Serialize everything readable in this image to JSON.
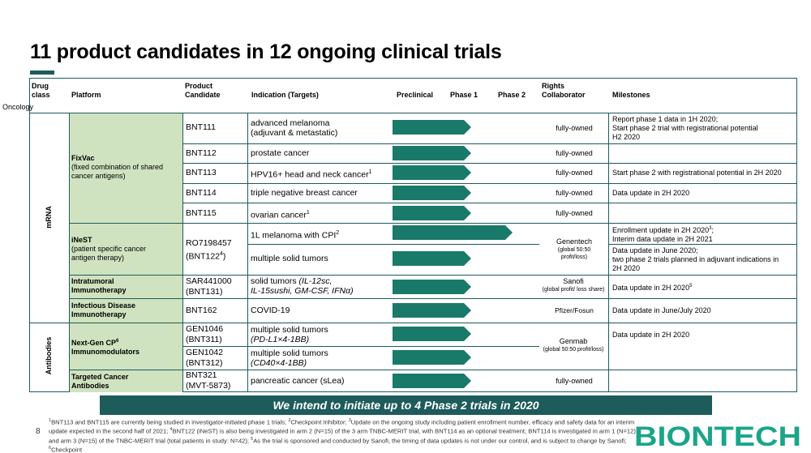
{
  "title": "11 product candidates in 12 ongoing clinical trials",
  "headers": {
    "drug_class": "Drug class",
    "platform": "Platform",
    "product_candidate": "Product Candidate",
    "indication": "Indication (Targets)",
    "preclinical": "Preclinical",
    "phase1": "Phase 1",
    "phase2": "Phase 2",
    "rights": "Rights Collaborator",
    "milestones": "Milestones"
  },
  "oncology_label": "Oncology",
  "drug_classes": {
    "mrna": "mRNA",
    "antibodies": "Antibodies"
  },
  "platforms": {
    "fixvac_name": "FixVac",
    "fixvac_desc": "(fixed combination of shared cancer antigens)",
    "inest_name": "iNeST",
    "inest_desc": "(patient specific cancer antigen therapy)",
    "intratumoral": "Intratumoral Immunotherapy",
    "infectious": "Infectious Disease Immunotherapy",
    "nextgen": "Next-Gen CP",
    "nextgen_sup": "6",
    "nextgen_suffix": "Immunomodulators",
    "targeted": "Targeted Cancer Antibodies"
  },
  "candidates": {
    "bnt111": "BNT111",
    "bnt112": "BNT112",
    "bnt113": "BNT113",
    "bnt114": "BNT114",
    "bnt115": "BNT115",
    "ro_line1": "RO7198457",
    "ro_line2": "(BNT122",
    "ro_sup": "4",
    "ro_line2_end": ")",
    "sar_line1": "SAR441000",
    "sar_line2": "(BNT131)",
    "bnt162": "BNT162",
    "gen1046_line1": "GEN1046",
    "gen1046_line2": "(BNT311)",
    "gen1042_line1": "GEN1042",
    "gen1042_line2": "(BNT312)",
    "bnt321_line1": "BNT321",
    "bnt321_line2": "(MVT-5873)"
  },
  "indications": {
    "bnt111_l1": "advanced melanoma",
    "bnt111_l2": "(adjuvant & metastatic)",
    "bnt112": "prostate cancer",
    "bnt113": "HPV16+ head and neck cancer",
    "bnt113_sup": "1",
    "bnt114": "triple negative breast cancer",
    "bnt115": "ovarian cancer",
    "bnt115_sup": "1",
    "ro_a": "1L melanoma with CPI",
    "ro_a_sup": "2",
    "ro_b": "multiple solid tumors",
    "sar_l1": "solid tumors ",
    "sar_l1_i": "(IL-12sc,",
    "sar_l2_i": "IL-15sushi, GM-CSF, IFNα)",
    "bnt162": "COVID-19",
    "gen1046_l1": "multiple solid tumors",
    "gen1046_l2": "(PD-L1×4-1BB)",
    "gen1042_l1": "multiple solid tumors",
    "gen1042_l2": "(CD40×4-1BB)",
    "bnt321": "pancreatic cancer (sLea)"
  },
  "rights": {
    "fully_owned": "fully-owned",
    "genentech": "Genentech",
    "genentech_sub": "(global 50:50 profit/loss)",
    "sanofi": "Sanofi",
    "sanofi_sub": "(global profit/ loss share)",
    "pfizer": "Pfizer/Fosun",
    "genmab": "Genmab",
    "genmab_sub": "(global 50:50 profit/loss)"
  },
  "milestones": {
    "bnt111_l1": "Report phase 1 data in 1H 2020;",
    "bnt111_l2": "Start phase 2 trial with registrational potential",
    "bnt111_l3": "H2 2020",
    "bnt113": "Start phase 2 with registrational potential in 2H 2020",
    "bnt114": "Data update in 2H 2020",
    "ro_a_l1": "Enrollment update in 2H 2020",
    "ro_a_sup": "3",
    "ro_a_l1_end": ";",
    "ro_a_l2": "Interim data update in 2H 2021",
    "ro_b_l1": "Data update in June 2020;",
    "ro_b_l2": "two phase 2 trials planned in adjuvant indications in",
    "ro_b_l3": "2H 2020",
    "sar": "Data update in 2H 2020",
    "sar_sup": "5",
    "bnt162": "Data update in June/July 2020",
    "genmab": "Data update in 2H 2020"
  },
  "progress": {
    "bnt111": "phase1",
    "bnt112": "phase1",
    "bnt113": "phase1",
    "bnt114": "phase1",
    "bnt115": "phase1",
    "ro_a": "phase2",
    "ro_b": "phase1",
    "sar": "phase1",
    "bnt162": "phase1",
    "gen1046": "phase1",
    "gen1042": "phase1",
    "bnt321": "phase1"
  },
  "banner": "We intend to initiate up to 4 Phase 2 trials in 2020",
  "page_number": "8",
  "footnote": {
    "s1": "1",
    "t1": "BNT113 and BNT115 are currently being studied in investigator-initiated phase 1 trials; ",
    "s2": "2",
    "t2": "Checkpoint Inhibitor; ",
    "s3": "3",
    "t3": "Update on the ongoing study including patient enrollment number, efficacy and safety data for an interim update expected in the second half of 2021; ",
    "s4": "4",
    "t4": "BNT122 (iNeST) is also being investigated in arm 2 (N=15) of the 3 arm TNBC-MERIT trial, with BNT114 as an optional treatment; BNT114 is investigated in arm 1 (N=12) and arm 3 (N=15) of the TNBC-MERIT trial (total patients in study: N=42); ",
    "s5": "5",
    "t5": "As the trial is sponsored and conducted by Sanofi, the timing of data updates is not under our control, and is subject to change by Sanofi; ",
    "s6": "6",
    "t6": "Checkpoint"
  },
  "logo_text": "BIONTECH",
  "colors": {
    "accent": "#1e5b5b",
    "arrow": "#197a6a",
    "platform_fill": "#cfe3c0",
    "logo": "#1aa58a"
  }
}
